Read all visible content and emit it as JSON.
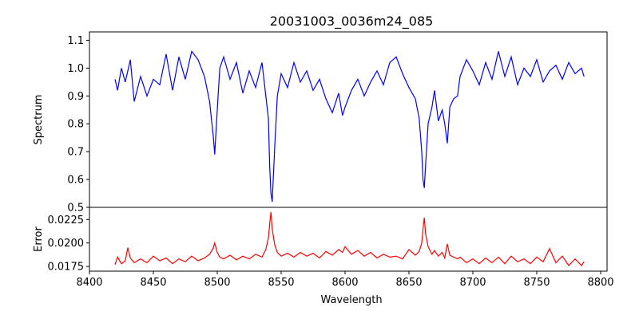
{
  "title": "20031003_0036m24_085",
  "chart_data": [
    {
      "type": "line",
      "panel": "spectrum",
      "title": "20031003_0036m24_085",
      "xlabel": "",
      "ylabel": "Spectrum",
      "xlim": [
        8400,
        8805
      ],
      "ylim": [
        0.5,
        1.13
      ],
      "xticks": [
        8400,
        8450,
        8500,
        8550,
        8600,
        8650,
        8700,
        8750,
        8800
      ],
      "yticks": [
        0.5,
        0.6,
        0.7,
        0.8,
        0.9,
        1.0,
        1.1
      ],
      "ytick_labels": [
        "0.5",
        "0.6",
        "0.7",
        "0.8",
        "0.9",
        "1.0",
        "1.1"
      ],
      "grid": false,
      "series": [
        {
          "color": "#0000ff",
          "x": [
            8420,
            8422,
            8425,
            8428,
            8432,
            8435,
            8440,
            8445,
            8450,
            8455,
            8460,
            8465,
            8470,
            8475,
            8480,
            8485,
            8490,
            8494,
            8497,
            8498,
            8500,
            8502,
            8505,
            8510,
            8515,
            8520,
            8525,
            8530,
            8535,
            8538,
            8540,
            8541,
            8542,
            8543,
            8545,
            8547,
            8550,
            8555,
            8560,
            8565,
            8570,
            8575,
            8580,
            8585,
            8590,
            8595,
            8598,
            8600,
            8605,
            8610,
            8615,
            8620,
            8625,
            8630,
            8635,
            8640,
            8645,
            8650,
            8655,
            8658,
            8660,
            8661,
            8662,
            8663,
            8665,
            8668,
            8670,
            8673,
            8676,
            8678,
            8680,
            8682,
            8685,
            8688,
            8690,
            8695,
            8700,
            8705,
            8710,
            8715,
            8720,
            8725,
            8730,
            8735,
            8740,
            8745,
            8750,
            8755,
            8760,
            8765,
            8770,
            8775,
            8780,
            8785,
            8787
          ],
          "y": [
            0.96,
            0.92,
            1.0,
            0.95,
            1.03,
            0.88,
            0.97,
            0.9,
            0.96,
            0.94,
            1.05,
            0.92,
            1.04,
            0.96,
            1.06,
            1.03,
            0.97,
            0.88,
            0.75,
            0.69,
            0.85,
            1.0,
            1.04,
            0.96,
            1.02,
            0.91,
            0.99,
            0.93,
            1.02,
            0.9,
            0.82,
            0.65,
            0.55,
            0.52,
            0.72,
            0.9,
            0.98,
            0.93,
            1.02,
            0.95,
            0.99,
            0.92,
            0.96,
            0.89,
            0.84,
            0.91,
            0.83,
            0.86,
            0.92,
            0.96,
            0.9,
            0.95,
            0.99,
            0.94,
            1.02,
            1.04,
            0.98,
            0.93,
            0.89,
            0.82,
            0.7,
            0.6,
            0.57,
            0.65,
            0.8,
            0.86,
            0.92,
            0.81,
            0.85,
            0.8,
            0.73,
            0.86,
            0.89,
            0.9,
            0.97,
            1.03,
            0.99,
            0.94,
            1.02,
            0.96,
            1.06,
            0.97,
            1.04,
            0.94,
            1.0,
            0.97,
            1.03,
            0.95,
            0.99,
            1.01,
            0.96,
            1.02,
            0.98,
            1.0,
            0.97
          ]
        }
      ]
    },
    {
      "type": "line",
      "panel": "error",
      "title": "",
      "xlabel": "Wavelength",
      "ylabel": "Error",
      "xlim": [
        8400,
        8805
      ],
      "ylim": [
        0.017,
        0.0238
      ],
      "xticks": [
        8400,
        8450,
        8500,
        8550,
        8600,
        8650,
        8700,
        8750,
        8800
      ],
      "yticks": [
        0.0175,
        0.02,
        0.0225
      ],
      "ytick_labels": [
        "0.0175",
        "0.0200",
        "0.0225"
      ],
      "grid": false,
      "series": [
        {
          "color": "#ff0000",
          "x": [
            8420,
            8422,
            8425,
            8428,
            8430,
            8432,
            8435,
            8440,
            8445,
            8450,
            8455,
            8460,
            8465,
            8470,
            8475,
            8480,
            8485,
            8490,
            8494,
            8497,
            8498,
            8500,
            8502,
            8505,
            8510,
            8515,
            8520,
            8525,
            8530,
            8535,
            8538,
            8540,
            8541,
            8542,
            8543,
            8545,
            8547,
            8550,
            8555,
            8560,
            8565,
            8570,
            8575,
            8580,
            8585,
            8590,
            8595,
            8598,
            8600,
            8605,
            8610,
            8615,
            8620,
            8625,
            8630,
            8635,
            8640,
            8645,
            8650,
            8655,
            8658,
            8660,
            8661,
            8662,
            8663,
            8665,
            8668,
            8670,
            8673,
            8676,
            8678,
            8680,
            8682,
            8685,
            8688,
            8690,
            8695,
            8700,
            8705,
            8710,
            8715,
            8720,
            8725,
            8730,
            8735,
            8740,
            8745,
            8750,
            8755,
            8760,
            8765,
            8770,
            8775,
            8780,
            8785,
            8787
          ],
          "y": [
            0.0177,
            0.0185,
            0.0178,
            0.0181,
            0.0195,
            0.0184,
            0.0179,
            0.0183,
            0.0179,
            0.0186,
            0.0181,
            0.0184,
            0.0178,
            0.0183,
            0.018,
            0.0186,
            0.0181,
            0.0184,
            0.0188,
            0.0195,
            0.02,
            0.019,
            0.0185,
            0.0183,
            0.0187,
            0.0182,
            0.0186,
            0.0183,
            0.0188,
            0.0185,
            0.0193,
            0.0205,
            0.022,
            0.0233,
            0.0215,
            0.0198,
            0.019,
            0.0186,
            0.0189,
            0.0185,
            0.019,
            0.0186,
            0.0189,
            0.0184,
            0.0191,
            0.0187,
            0.0193,
            0.019,
            0.0196,
            0.0188,
            0.0192,
            0.0186,
            0.019,
            0.0184,
            0.0188,
            0.0185,
            0.0186,
            0.0183,
            0.0193,
            0.0187,
            0.0191,
            0.02,
            0.0215,
            0.0227,
            0.021,
            0.0196,
            0.0188,
            0.0192,
            0.0186,
            0.019,
            0.0184,
            0.0199,
            0.0187,
            0.0185,
            0.0183,
            0.0185,
            0.0179,
            0.0183,
            0.0178,
            0.0184,
            0.0179,
            0.0185,
            0.0178,
            0.0186,
            0.018,
            0.0183,
            0.0178,
            0.0185,
            0.018,
            0.0194,
            0.0179,
            0.0186,
            0.0176,
            0.0183,
            0.0176,
            0.018
          ]
        }
      ]
    }
  ]
}
